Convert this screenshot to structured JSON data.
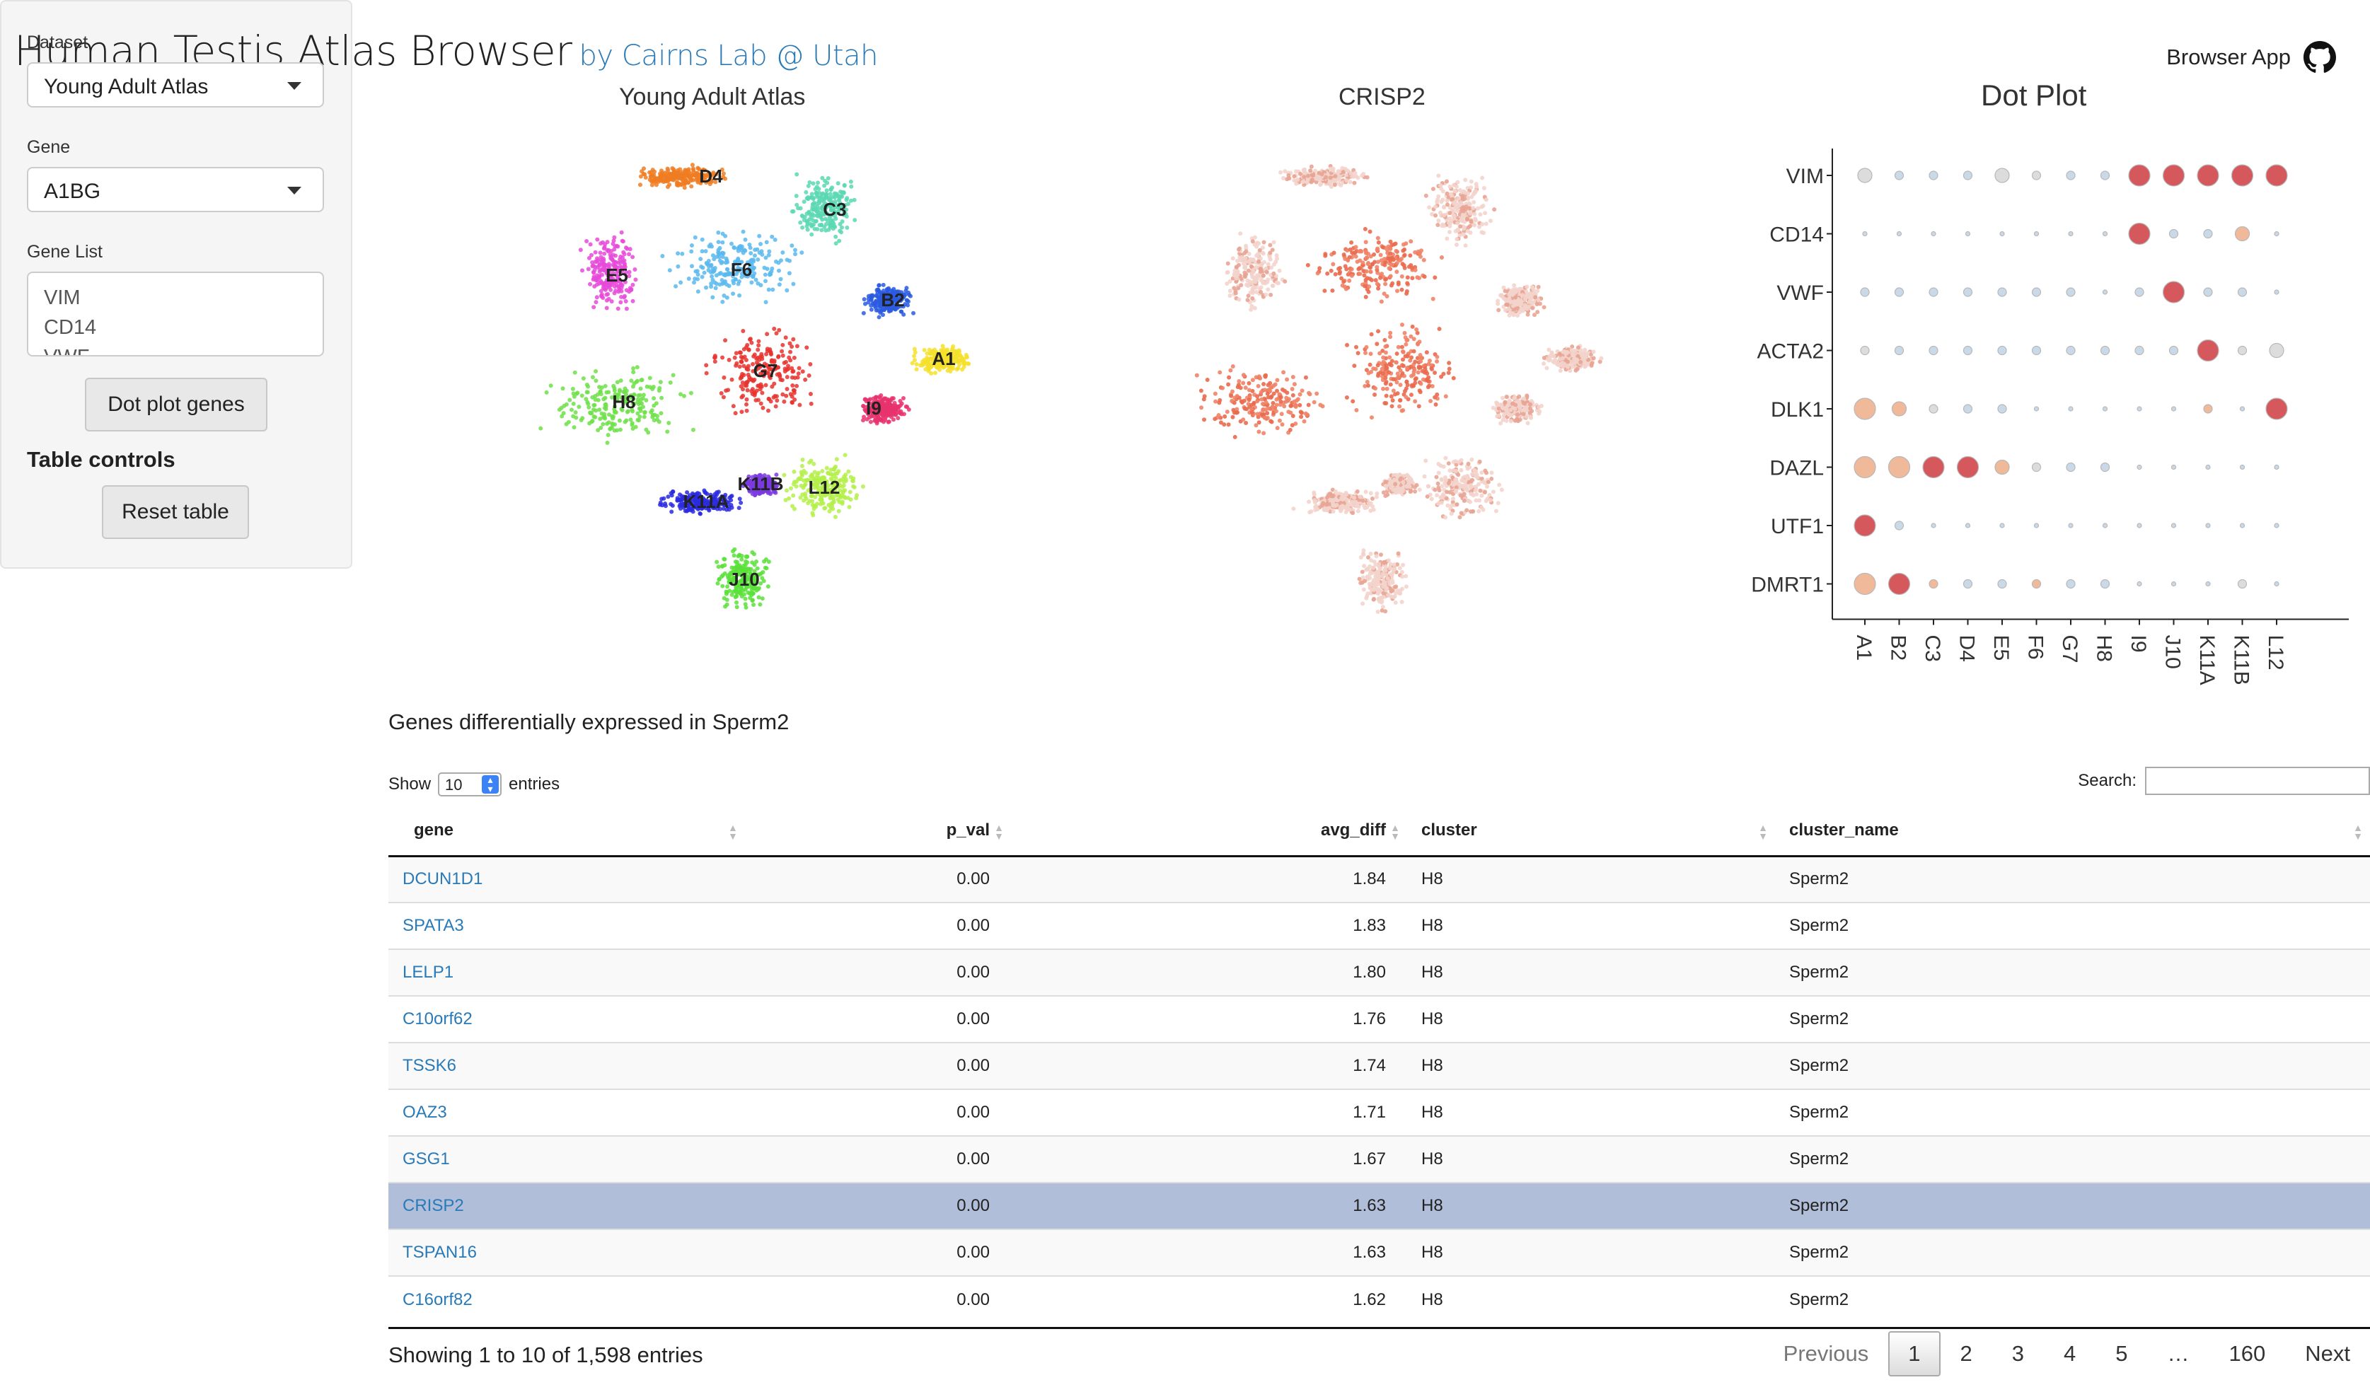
{
  "header": {
    "title": "Human Testis Atlas Browser",
    "subtitle": "by Cairns Lab @ Utah",
    "browser_app_label": "Browser App"
  },
  "sidebar": {
    "dataset_label": "Dataset",
    "dataset_value": "Young Adult Atlas",
    "gene_label": "Gene",
    "gene_value": "A1BG",
    "gene_list_label": "Gene List",
    "gene_list_lines": [
      "VIM",
      "CD14",
      "VWF"
    ],
    "dot_plot_button": "Dot plot genes",
    "table_controls_label": "Table controls",
    "reset_button": "Reset table"
  },
  "plots": {
    "umap_title": "Young Adult Atlas",
    "gene_title": "CRISP2",
    "dot_title": "Dot Plot",
    "cluster_labels": [
      {
        "label": "D4",
        "color": "#f07d22"
      },
      {
        "label": "C3",
        "color": "#5ad8b2"
      },
      {
        "label": "E5",
        "color": "#e64ad8"
      },
      {
        "label": "F6",
        "color": "#5ab8ee"
      },
      {
        "label": "B2",
        "color": "#2a5ae0"
      },
      {
        "label": "A1",
        "color": "#f5e02c"
      },
      {
        "label": "G7",
        "color": "#e8322e"
      },
      {
        "label": "H8",
        "color": "#6ee04a"
      },
      {
        "label": "I9",
        "color": "#e8326e"
      },
      {
        "label": "K11A",
        "color": "#2a2ae0"
      },
      {
        "label": "K11B",
        "color": "#7a3ae0"
      },
      {
        "label": "L12",
        "color": "#b4f04a"
      },
      {
        "label": "J10",
        "color": "#5ae03a"
      }
    ]
  },
  "chart_data": {
    "type": "scatter",
    "title": "Dot Plot",
    "y_categories": [
      "VIM",
      "CD14",
      "VWF",
      "ACTA2",
      "DLK1",
      "DAZL",
      "UTF1",
      "DMRT1"
    ],
    "x_categories": [
      "A1",
      "B2",
      "C3",
      "D4",
      "E5",
      "F6",
      "G7",
      "H8",
      "I9",
      "J10",
      "K11A",
      "K11B",
      "L12"
    ],
    "size_scale": "0 = smallest dot, 3 = largest dot",
    "color_scale": "0 = light blue-grey, 1 = light grey, 2 = peach, 3 = red",
    "size": [
      [
        2,
        1,
        1,
        1,
        2,
        1,
        1,
        1,
        3,
        3,
        3,
        3,
        3
      ],
      [
        0,
        0,
        0,
        0,
        0,
        0,
        0,
        0,
        3,
        1,
        1,
        2,
        0
      ],
      [
        1,
        1,
        1,
        1,
        1,
        1,
        1,
        0,
        1,
        3,
        1,
        1,
        0
      ],
      [
        1,
        1,
        1,
        1,
        1,
        1,
        1,
        1,
        1,
        1,
        3,
        1,
        2
      ],
      [
        3,
        2,
        1,
        1,
        1,
        0,
        0,
        0,
        0,
        0,
        1,
        0,
        3
      ],
      [
        3,
        3,
        3,
        3,
        2,
        1,
        1,
        1,
        0,
        0,
        0,
        0,
        0
      ],
      [
        3,
        1,
        0,
        0,
        0,
        0,
        0,
        0,
        0,
        0,
        0,
        0,
        0
      ],
      [
        3,
        3,
        1,
        1,
        1,
        1,
        1,
        1,
        0,
        0,
        0,
        1,
        0
      ]
    ],
    "color": [
      [
        1,
        0,
        0,
        0,
        1,
        1,
        0,
        0,
        3,
        3,
        3,
        3,
        3
      ],
      [
        0,
        0,
        0,
        0,
        0,
        0,
        0,
        0,
        3,
        0,
        0,
        2,
        0
      ],
      [
        0,
        0,
        0,
        0,
        0,
        0,
        0,
        0,
        0,
        3,
        0,
        0,
        0
      ],
      [
        1,
        0,
        0,
        0,
        0,
        0,
        0,
        0,
        0,
        0,
        3,
        1,
        1
      ],
      [
        2,
        2,
        1,
        0,
        0,
        0,
        0,
        0,
        0,
        0,
        2,
        0,
        3
      ],
      [
        2,
        2,
        3,
        3,
        2,
        1,
        0,
        0,
        0,
        0,
        0,
        0,
        0
      ],
      [
        3,
        0,
        0,
        0,
        0,
        0,
        0,
        0,
        0,
        0,
        0,
        0,
        0
      ],
      [
        2,
        3,
        2,
        0,
        0,
        2,
        0,
        0,
        0,
        0,
        0,
        1,
        0
      ]
    ]
  },
  "table": {
    "heading": "Genes differentially expressed in Sperm2",
    "show_label": "Show",
    "length_value": "10",
    "entries_label": "entries",
    "search_label": "Search:",
    "columns": [
      "gene",
      "p_val",
      "avg_diff",
      "cluster",
      "cluster_name"
    ],
    "rows": [
      {
        "gene": "DCUN1D1",
        "p_val": "0.00",
        "avg_diff": "1.84",
        "cluster": "H8",
        "cluster_name": "Sperm2"
      },
      {
        "gene": "SPATA3",
        "p_val": "0.00",
        "avg_diff": "1.83",
        "cluster": "H8",
        "cluster_name": "Sperm2"
      },
      {
        "gene": "LELP1",
        "p_val": "0.00",
        "avg_diff": "1.80",
        "cluster": "H8",
        "cluster_name": "Sperm2"
      },
      {
        "gene": "C10orf62",
        "p_val": "0.00",
        "avg_diff": "1.76",
        "cluster": "H8",
        "cluster_name": "Sperm2"
      },
      {
        "gene": "TSSK6",
        "p_val": "0.00",
        "avg_diff": "1.74",
        "cluster": "H8",
        "cluster_name": "Sperm2"
      },
      {
        "gene": "OAZ3",
        "p_val": "0.00",
        "avg_diff": "1.71",
        "cluster": "H8",
        "cluster_name": "Sperm2"
      },
      {
        "gene": "GSG1",
        "p_val": "0.00",
        "avg_diff": "1.67",
        "cluster": "H8",
        "cluster_name": "Sperm2"
      },
      {
        "gene": "CRISP2",
        "p_val": "0.00",
        "avg_diff": "1.63",
        "cluster": "H8",
        "cluster_name": "Sperm2"
      },
      {
        "gene": "TSPAN16",
        "p_val": "0.00",
        "avg_diff": "1.63",
        "cluster": "H8",
        "cluster_name": "Sperm2"
      },
      {
        "gene": "C16orf82",
        "p_val": "0.00",
        "avg_diff": "1.62",
        "cluster": "H8",
        "cluster_name": "Sperm2"
      }
    ],
    "selected_row": 7,
    "info": "Showing 1 to 10 of 1,598 entries",
    "pagination": {
      "previous": "Previous",
      "pages": [
        "1",
        "2",
        "3",
        "4",
        "5",
        "…",
        "160"
      ],
      "current": "1",
      "next": "Next"
    }
  }
}
